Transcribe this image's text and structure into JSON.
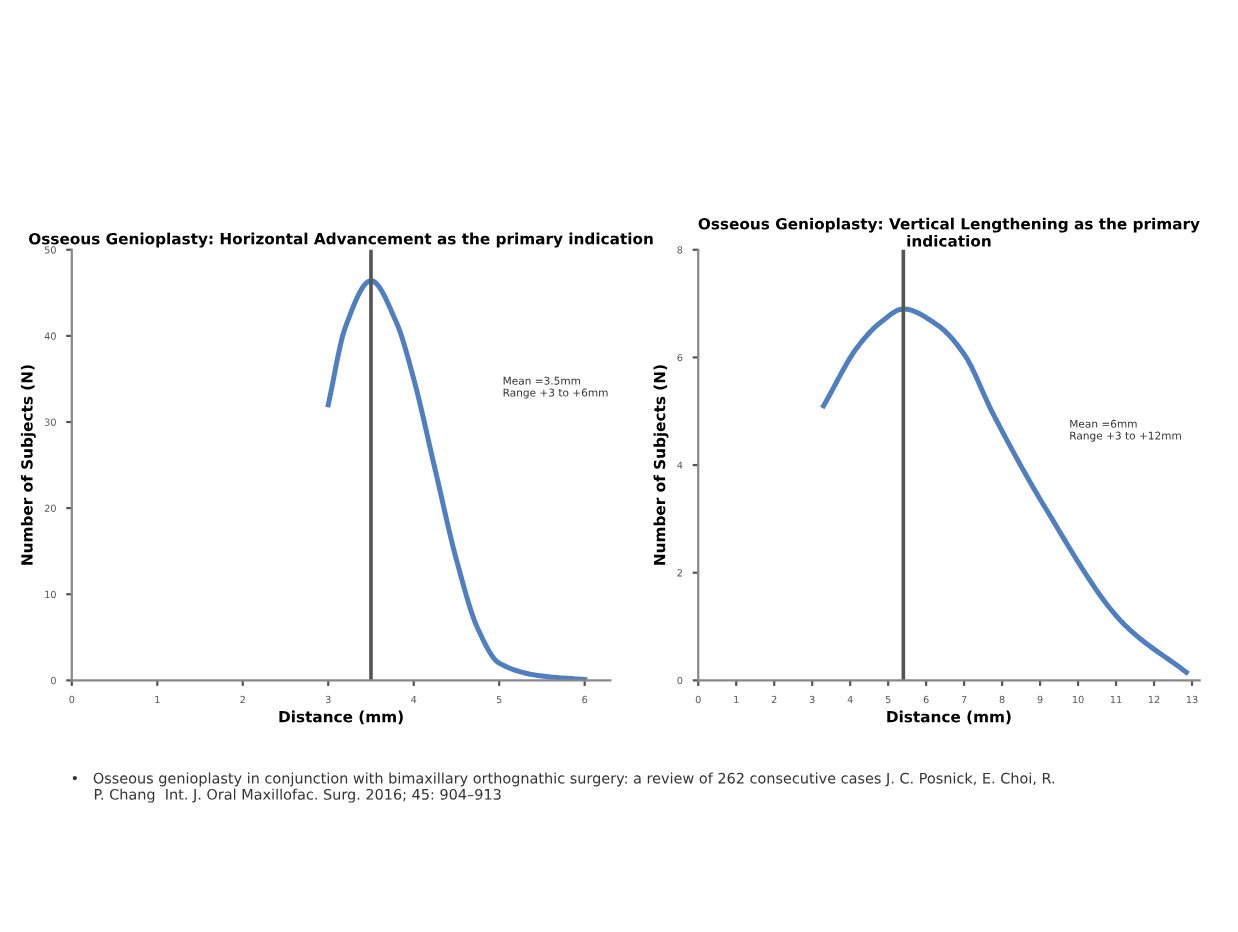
{
  "chart_data": [
    {
      "type": "line",
      "title": "Osseous Genioplasty: Horizontal Advancement as the primary indication",
      "xlabel": "Distance (mm)",
      "ylabel": "Number of Subjects (N)",
      "x": [
        3.0,
        3.2,
        3.5,
        3.8,
        4.0,
        4.25,
        4.5,
        4.75,
        5.0,
        5.5,
        6.0
      ],
      "series": [
        {
          "color": "#4f7fc0",
          "values": [
            32,
            41,
            46.4,
            41.5,
            35,
            24.5,
            14,
            6,
            2,
            0.5,
            0.1
          ]
        }
      ],
      "xlim": [
        0,
        6.3
      ],
      "xticks": [
        0,
        1,
        2,
        3,
        4,
        5,
        6
      ],
      "ylim": [
        0,
        50
      ],
      "yticks": [
        0,
        10,
        20,
        30,
        40,
        50
      ],
      "ref_lines": [
        {
          "axis": "x",
          "value": 3.5,
          "color": "#555555"
        }
      ],
      "annotations": [
        "Mean =3.5mm\nRange +3 to +6mm"
      ],
      "grid": false,
      "legend": false,
      "marker": "none",
      "line_style": "solid"
    },
    {
      "type": "line",
      "title": "Osseous Genioplasty: Vertical Lengthening as the primary indication",
      "xlabel": "Distance (mm)",
      "ylabel": "Number of Subjects (N)",
      "x": [
        3.3,
        4.2,
        4.8,
        5.4,
        6.3,
        7.0,
        7.75,
        9.1,
        11.2,
        12.85
      ],
      "series": [
        {
          "color": "#4f7fc0",
          "values": [
            5.1,
            6.2,
            6.65,
            6.9,
            6.6,
            6.06,
            4.97,
            3.25,
            1.05,
            0.15
          ]
        }
      ],
      "xlim": [
        0,
        13.2
      ],
      "xticks": [
        0,
        1,
        2,
        3,
        4,
        5,
        6,
        7,
        8,
        9,
        10,
        11,
        12,
        13
      ],
      "ylim": [
        0,
        8
      ],
      "yticks": [
        0,
        2,
        4,
        6,
        8
      ],
      "ref_lines": [
        {
          "axis": "x",
          "value": 5.4,
          "color": "#555555"
        }
      ],
      "annotations": [
        "Mean =6mm\nRange +3 to +12mm",
        "•   Osseous genioplasty in conjunction with bimaxillary orthognathic surgery: a review of 262 consecutive cases J. C. Posnick, E. Choi, R.\n     P. Chang  Int. J. Oral Maxillofac. Surg. 2016; 45: 904–913"
      ],
      "grid": false,
      "legend": false,
      "marker": "none",
      "line_style": "solid"
    }
  ]
}
